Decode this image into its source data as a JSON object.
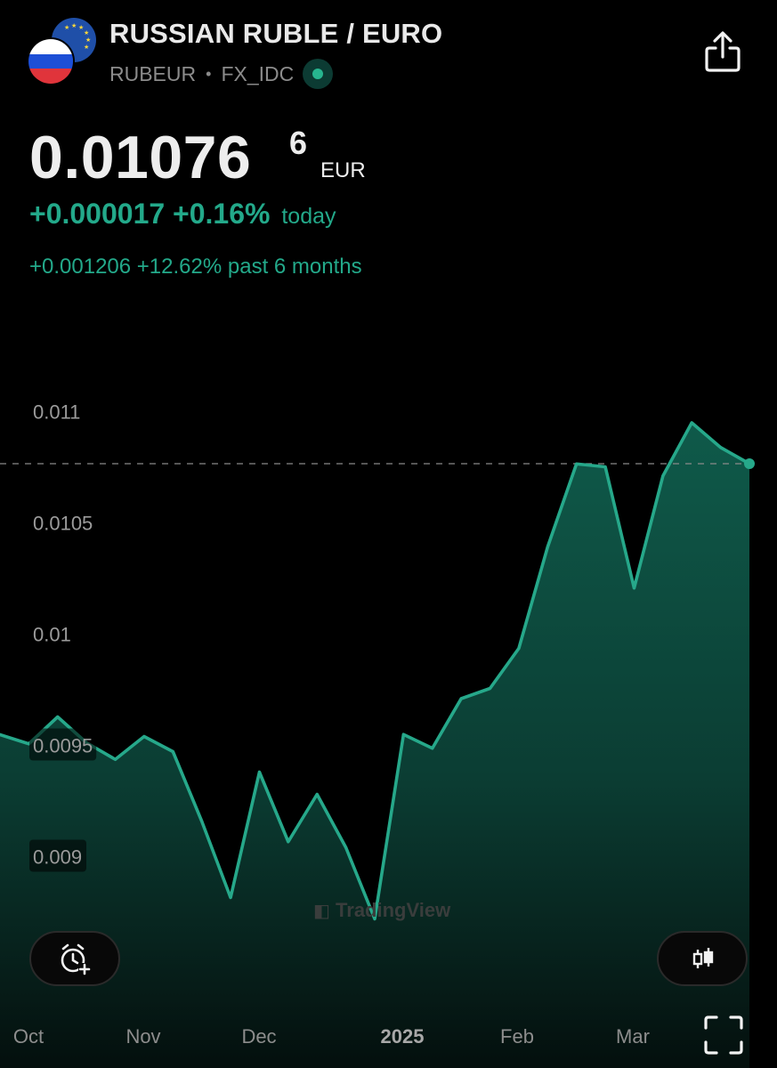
{
  "header": {
    "title": "RUSSIAN RUBLE / EURO",
    "symbol": "RUBEUR",
    "exchange": "FX_IDC",
    "icons": [
      "russia-flag-icon",
      "eu-flag-icon",
      "live-status-icon",
      "share-icon"
    ]
  },
  "quote": {
    "price_main": "0.01076",
    "price_sup": "6",
    "currency": "EUR",
    "change_abs": "+0.000017",
    "change_pct": "+0.16%",
    "change_suffix": "today",
    "period_change": "+0.001206 +12.62% past 6 months"
  },
  "controls": {
    "alert_button_icon": "add-alert-clock-icon",
    "chart_type_button_icon": "candlestick-icon",
    "fullscreen_icon": "expand-icon"
  },
  "watermark": "TradingView",
  "colors": {
    "accent": "#23a98a",
    "line": "#26a88a",
    "area_top": "#0f5a4a",
    "background": "#000000"
  },
  "chart_data": {
    "type": "area",
    "title": "",
    "xlabel": "",
    "ylabel": "",
    "y_ticks": [
      "0.011",
      "0.0105",
      "0.01",
      "0.0095",
      "0.009"
    ],
    "x_ticks": [
      "Oct",
      "Nov",
      "Dec",
      "2025",
      "Feb",
      "Mar"
    ],
    "ylim": [
      0.00855,
      0.01125
    ],
    "grid": false,
    "last_value": 0.010766,
    "series": [
      {
        "values": [
          0.009548,
          0.009507,
          0.009628,
          0.009512,
          0.009437,
          0.00954,
          0.009472,
          0.009159,
          0.008816,
          0.00938,
          0.009067,
          0.00928,
          0.009041,
          0.00872,
          0.009549,
          0.009487,
          0.00971,
          0.009756,
          0.009936,
          0.010392,
          0.010765,
          0.010752,
          0.010207,
          0.010711,
          0.01095,
          0.010839,
          0.010766
        ]
      }
    ]
  }
}
